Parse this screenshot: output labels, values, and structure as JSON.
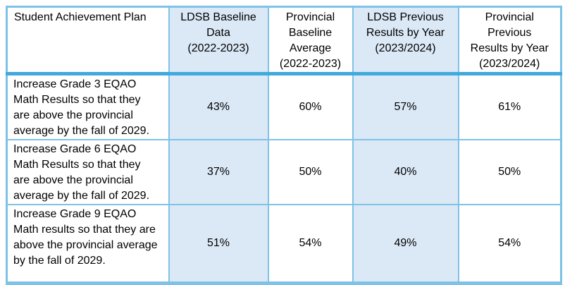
{
  "colors": {
    "cell_fill": "#dbe9f7",
    "grid_border": "#7fc2e7",
    "header_separator": "#41aadc",
    "text": "#000000"
  },
  "table": {
    "header": {
      "goal": "Student Achievement Plan",
      "ldsb_baseline": "LDSB Baseline\nData\n(2022-2023)",
      "prov_baseline": "Provincial\nBaseline\nAverage\n(2022-2023)",
      "ldsb_previous": "LDSB Previous\nResults by Year\n(2023/2024)",
      "prov_previous": "Provincial\nPrevious\nResults by Year\n(2023/2024)"
    },
    "rows": [
      {
        "goal": "Increase Grade 3 EQAO\nMath Results so that they\nare above the provincial\naverage by the fall of 2029.",
        "ldsb_baseline": "43%",
        "prov_baseline": "60%",
        "ldsb_previous": "57%",
        "prov_previous": "61%"
      },
      {
        "goal": "Increase Grade 6 EQAO\nMath Results so that they\nare above the provincial\naverage by the fall of 2029.",
        "ldsb_baseline": "37%",
        "prov_baseline": "50%",
        "ldsb_previous": "40%",
        "prov_previous": "50%"
      },
      {
        "goal": "Increase Grade 9 EQAO\nMath results so that they are\nabove the provincial average\nby the fall of 2029.",
        "ldsb_baseline": "51%",
        "prov_baseline": "54%",
        "ldsb_previous": "49%",
        "prov_previous": "54%"
      }
    ]
  }
}
